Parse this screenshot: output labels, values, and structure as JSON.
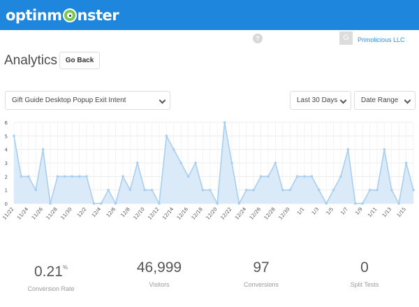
{
  "header": {
    "brand_pre": "optinm",
    "brand_post": "nster",
    "help_icon": "question-icon",
    "avatar_letter": "G",
    "account_name": "Primolicious LLC",
    "colors": {
      "brand": "#1e86dd",
      "line": "#a8cff0",
      "area": "#dbeaf8"
    }
  },
  "page": {
    "title": "Analytics",
    "go_back_label": "Go Back"
  },
  "filters": {
    "campaign": "Gift Guide Desktop Popup Exit Intent",
    "range": "Last 30 Days",
    "date_range": "Date Range"
  },
  "chart_data": {
    "type": "area",
    "ylim": [
      0,
      6
    ],
    "yticks": [
      0,
      1,
      2,
      3,
      4,
      5,
      6
    ],
    "x": [
      "11/22",
      "11/23",
      "11/24",
      "11/25",
      "11/26",
      "11/27",
      "11/28",
      "11/29",
      "11/30",
      "12/1",
      "12/2",
      "12/3",
      "12/4",
      "12/5",
      "12/6",
      "12/7",
      "12/8",
      "12/9",
      "12/10",
      "12/11",
      "12/12",
      "12/13",
      "12/14",
      "12/15",
      "12/16",
      "12/17",
      "12/18",
      "12/19",
      "12/20",
      "12/21",
      "12/22",
      "12/23",
      "12/24",
      "12/25",
      "12/26",
      "12/27",
      "12/28",
      "12/29",
      "12/30",
      "12/31",
      "1/1",
      "1/2",
      "1/3",
      "1/4",
      "1/5",
      "1/6",
      "1/7",
      "1/8",
      "1/9",
      "1/10",
      "1/11",
      "1/12",
      "1/13",
      "1/14",
      "1/15",
      "1/16"
    ],
    "values": [
      5,
      2,
      2,
      1,
      4,
      0,
      2,
      2,
      2,
      2,
      2,
      0,
      0,
      1,
      0,
      2,
      1,
      3,
      1,
      1,
      0,
      5,
      4,
      3,
      2,
      3,
      1,
      1,
      0,
      6,
      3,
      0,
      1,
      1,
      2,
      2,
      3,
      1,
      1,
      2,
      2,
      2,
      1,
      0,
      1,
      2,
      4,
      0,
      0,
      1,
      1,
      4,
      1,
      0,
      3,
      1
    ],
    "tick_labels": [
      "11/22",
      "11/24",
      "11/26",
      "11/28",
      "11/30",
      "12/2",
      "12/4",
      "12/6",
      "12/8",
      "12/10",
      "12/12",
      "12/14",
      "12/16",
      "12/18",
      "12/20",
      "12/22",
      "12/24",
      "12/26",
      "12/28",
      "12/30",
      "1/1",
      "1/3",
      "1/5",
      "1/7",
      "1/9",
      "1/11",
      "1/13",
      "1/15"
    ]
  },
  "stats": [
    {
      "value": "0.21",
      "suffix": "%",
      "label": "Conversion Rate"
    },
    {
      "value": "46,999",
      "suffix": "",
      "label": "Visitors"
    },
    {
      "value": "97",
      "suffix": "",
      "label": "Conversions"
    },
    {
      "value": "0",
      "suffix": "",
      "label": "Split Tests"
    }
  ]
}
